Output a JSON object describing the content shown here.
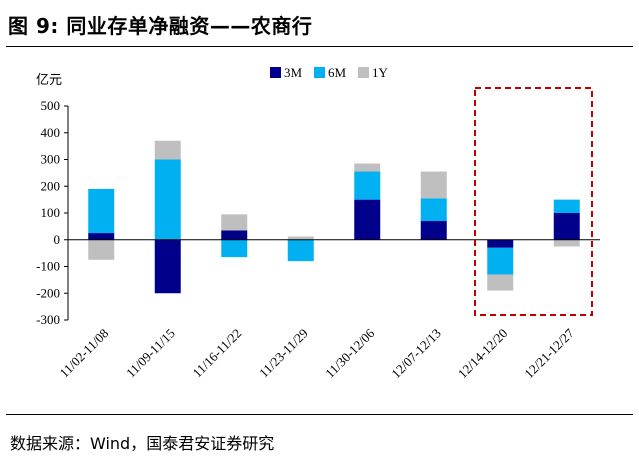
{
  "figure": {
    "title": "图 9:  同业存单净融资——农商行",
    "source": "数据来源：Wind，国泰君安证券研究"
  },
  "chart_data": {
    "type": "bar",
    "stacked": true,
    "unit_label": "亿元",
    "categories": [
      "11/02-11/08",
      "11/09-11/15",
      "11/16-11/22",
      "11/23-11/29",
      "11/30-12/06",
      "12/07-12/13",
      "12/14-12/20",
      "12/21-12/27"
    ],
    "series": [
      {
        "name": "3M",
        "color": "#00008B",
        "values": [
          25,
          -200,
          35,
          0,
          150,
          70,
          -30,
          100
        ]
      },
      {
        "name": "6M",
        "color": "#00B0F0",
        "values": [
          165,
          300,
          -65,
          -80,
          105,
          85,
          -100,
          50
        ]
      },
      {
        "name": "1Y",
        "color": "#BFBFBF",
        "values": [
          -75,
          70,
          60,
          12,
          30,
          100,
          -60,
          -25
        ]
      }
    ],
    "yticks": [
      500,
      400,
      300,
      200,
      100,
      0,
      -100,
      -200,
      -300
    ],
    "ylim": [
      -300,
      500
    ],
    "legend_position": "top",
    "grid": false,
    "highlight_box": {
      "from_category": "12/14-12/20",
      "to_category": "12/21-12/27",
      "style": "dashed",
      "color": "#C00000"
    }
  }
}
